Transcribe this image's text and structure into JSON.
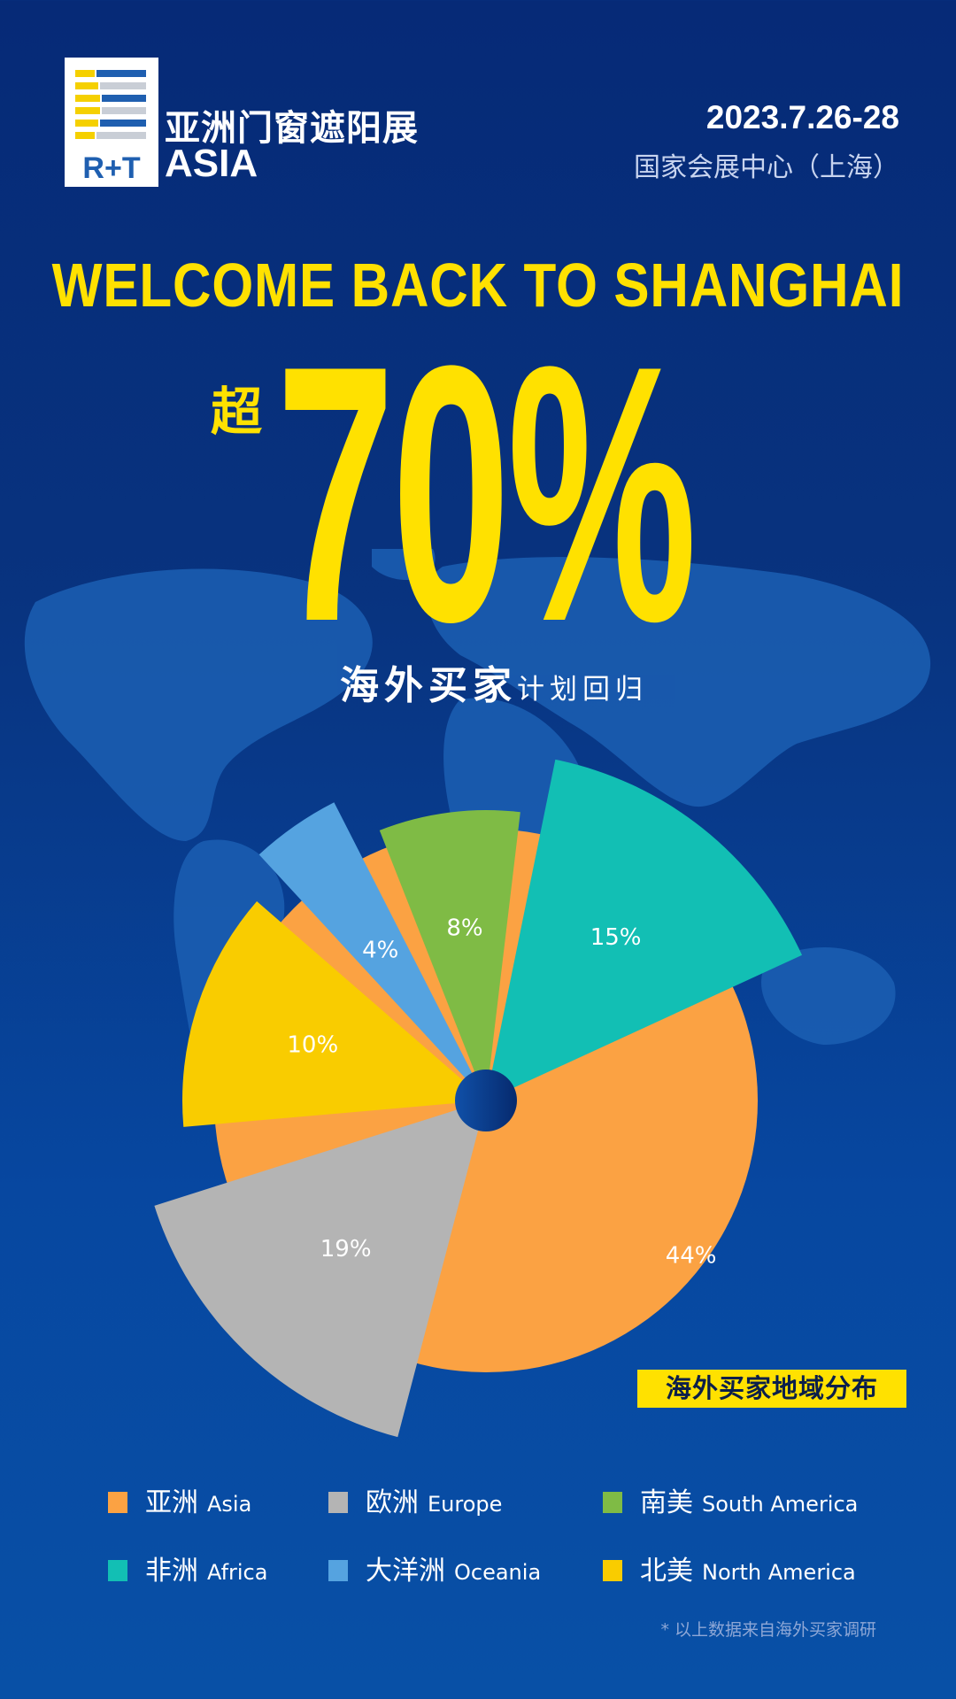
{
  "header": {
    "logo_cn": "亚洲门窗遮阳展",
    "logo_en": "ASIA",
    "logo_mark": "R+T",
    "date": "2023.7.26-28",
    "venue": "国家会展中心（上海）"
  },
  "headline": "WELCOME BACK TO SHANGHAI",
  "stat": {
    "prefix": "超",
    "value": "70%",
    "caption_bold": "海外买家",
    "caption": "计划回归"
  },
  "badge": "海外买家地域分布",
  "footnote": "* 以上数据来自海外买家调研",
  "colors": {
    "accent": "#FFE100",
    "background": "#0740A0"
  },
  "chart_data": {
    "type": "pie",
    "title": "海外买家地域分布",
    "legend_position": "bottom",
    "series": [
      {
        "name_cn": "亚洲",
        "name": "Asia",
        "value": 44,
        "label": "44%",
        "color": "#FBA243"
      },
      {
        "name_cn": "欧洲",
        "name": "Europe",
        "value": 19,
        "label": "19%",
        "color": "#B4B4B4"
      },
      {
        "name_cn": "南美",
        "name": "South America",
        "value": 8,
        "label": "8%",
        "color": "#7FBB45"
      },
      {
        "name_cn": "非洲",
        "name": "Africa",
        "value": 15,
        "label": "15%",
        "color": "#12BFB4"
      },
      {
        "name_cn": "大洋洲",
        "name": "Oceania",
        "value": 4,
        "label": "4%",
        "color": "#55A3E0"
      },
      {
        "name_cn": "北美",
        "name": "North America",
        "value": 10,
        "label": "10%",
        "color": "#F9CC00"
      }
    ]
  }
}
